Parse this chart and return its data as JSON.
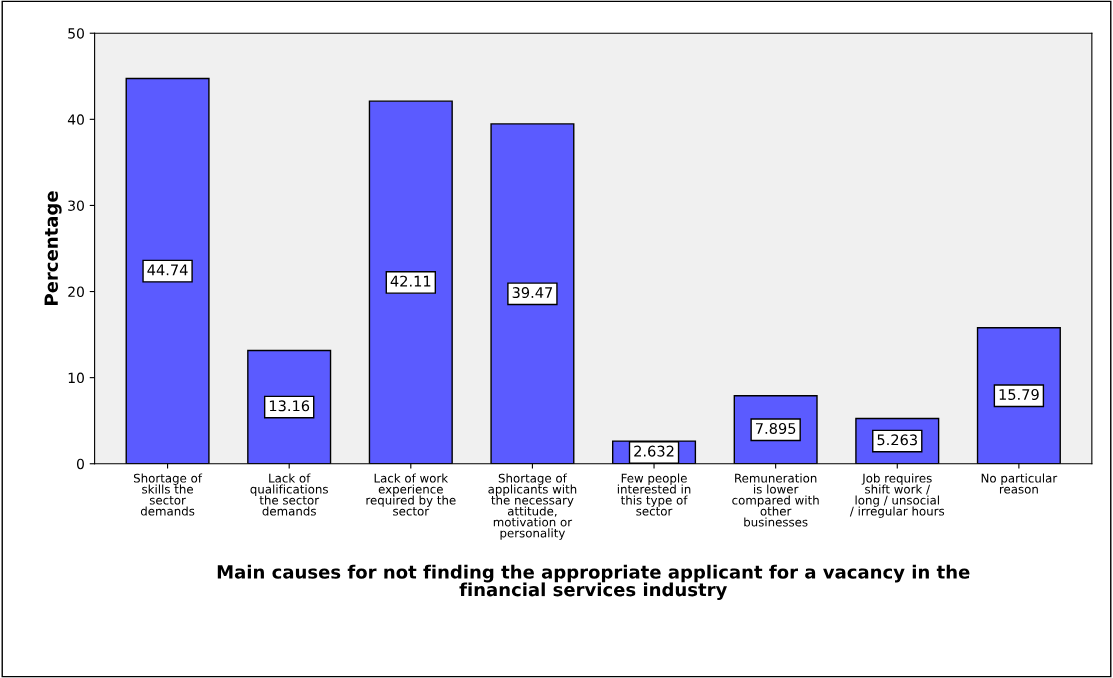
{
  "chart_data": {
    "type": "bar",
    "categories": [
      "Shortage of\nskills the\nsector\ndemands",
      "Lack of\nqualifications\nthe sector\ndemands",
      "Lack of work\nexperience\nrequired by the\nsector",
      "Shortage of\napplicants with\nthe necessary\nattitude,\nmotivation or\npersonality",
      "Few people\ninterested in\nthis type of\nsector",
      "Remuneration\nis lower\ncompared with\nother\nbusinesses",
      "Job requires\nshift work /\nlong / unsocial\n/ irregular hours",
      "No particular\nreason"
    ],
    "values": [
      44.74,
      13.16,
      42.11,
      39.47,
      2.632,
      7.895,
      5.263,
      15.79
    ],
    "color": "#5b5bff",
    "ylabel": "Percentage",
    "xlabel": "Main causes for not finding the appropriate applicant for a vacancy in the\nfinancial services industry",
    "ylim": [
      0,
      50
    ],
    "yticks": [
      0,
      10,
      20,
      30,
      40,
      50
    ],
    "data_labels": true,
    "grid": false,
    "legend": false
  }
}
